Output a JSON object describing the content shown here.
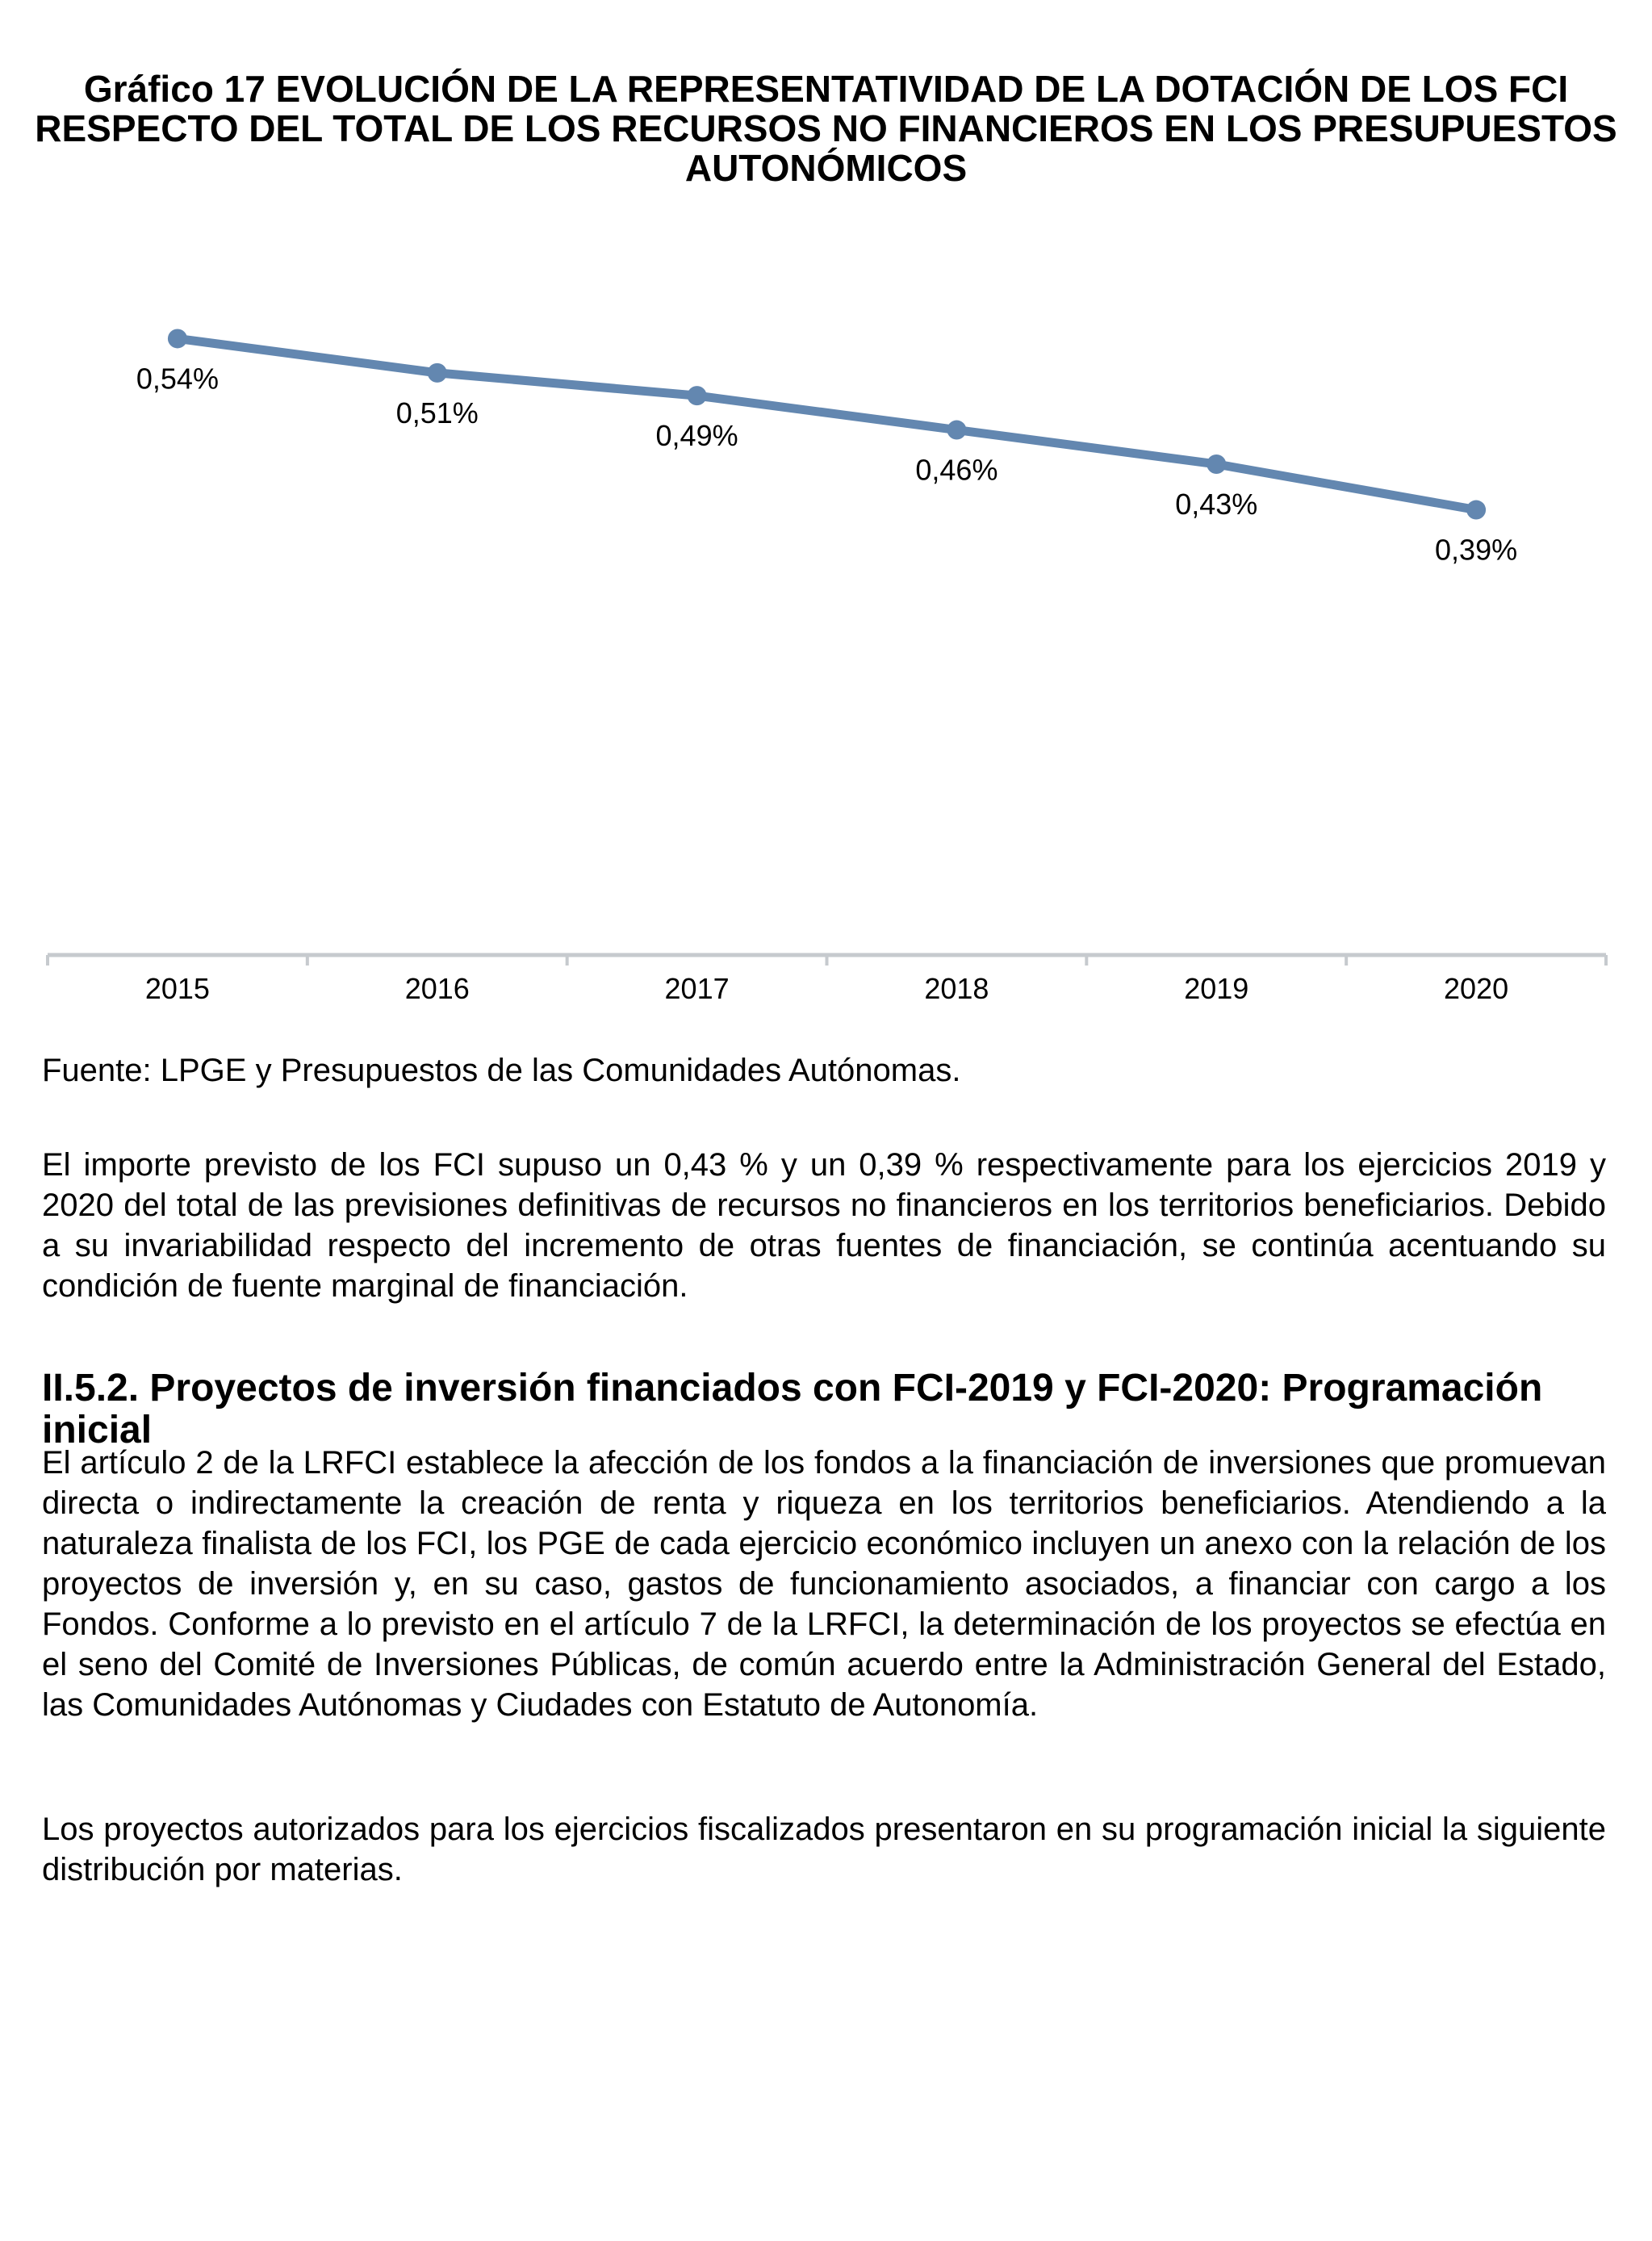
{
  "figure": {
    "title_lines": [
      "Gráfico 17 EVOLUCIÓN DE LA REPRESENTATIVIDAD DE LA DOTACIÓN DE LOS FCI",
      "RESPECTO DEL TOTAL DE LOS RECURSOS NO FINANCIEROS EN LOS PRESUPUESTOS",
      "AUTONÓMICOS"
    ],
    "source": "Fuente: LPGE y Presupuestos de las Comunidades Autónomas."
  },
  "chart_data": {
    "type": "line",
    "title": "Gráfico 17 EVOLUCIÓN DE LA REPRESENTATIVIDAD DE LA DOTACIÓN DE LOS FCI RESPECTO DEL TOTAL DE LOS RECURSOS NO FINANCIEROS EN LOS PRESUPUESTOS AUTONÓMICOS",
    "categories": [
      "2015",
      "2016",
      "2017",
      "2018",
      "2019",
      "2020"
    ],
    "values": [
      0.54,
      0.51,
      0.49,
      0.46,
      0.43,
      0.39
    ],
    "data_labels": [
      "0,54%",
      "0,51%",
      "0,49%",
      "0,46%",
      "0,43%",
      "0,39%"
    ],
    "xlabel": "",
    "ylabel": "",
    "ylim": [
      0,
      0.6
    ],
    "grid": false,
    "legend_position": "none",
    "line_color": "#6387B0",
    "marker": "circle",
    "axis_color": "#C6CACE",
    "label_color": "#000000"
  },
  "body": {
    "paragraph1": "El importe previsto de los FCI supuso un 0,43 % y un 0,39 % respectivamente para los ejercicios 2019 y 2020 del total de las previsiones definitivas de recursos no financieros en los territorios beneficiarios. Debido a su invariabilidad respecto del incremento de otras fuentes de financiación, se continúa acentuando su condición de fuente marginal de financiación.",
    "section_heading": "II.5.2. Proyectos de inversión financiados con FCI-2019 y FCI-2020: Programación inicial",
    "paragraph2": "El artículo 2 de la LRFCI establece la afección de los fondos a la financiación de inversiones que promuevan directa o indirectamente la creación de renta y riqueza en los territorios beneficiarios. Atendiendo a la naturaleza finalista de los FCI, los PGE de cada ejercicio económico incluyen un anexo con la relación de los proyectos de inversión y, en su caso, gastos de funcionamiento asociados, a financiar con cargo a los Fondos. Conforme a lo previsto en el artículo 7 de la LRFCI, la determinación de los proyectos se efectúa en el seno del Comité de Inversiones Públicas, de común acuerdo entre la Administración General del Estado, las Comunidades Autónomas y Ciudades con Estatuto de Autonomía.",
    "paragraph3": "Los proyectos autorizados para los ejercicios fiscalizados presentaron en su programación inicial la siguiente distribución por materias."
  }
}
